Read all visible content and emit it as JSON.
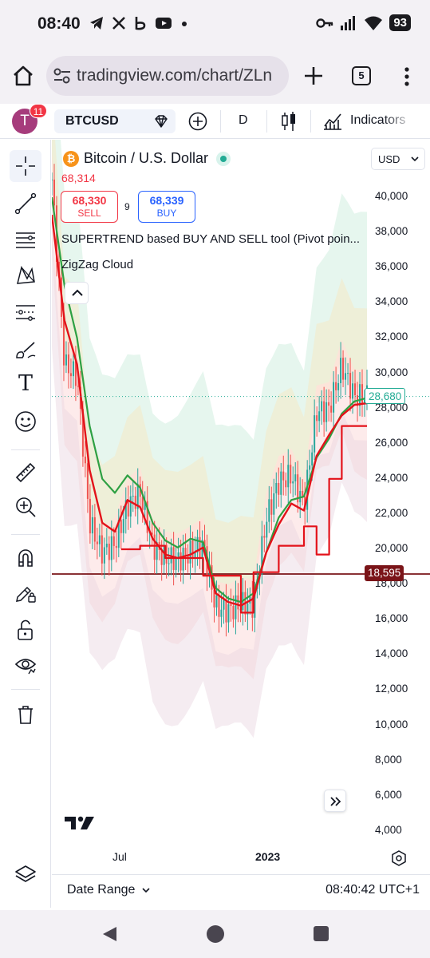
{
  "status_bar": {
    "time": "08:40",
    "notification_icons": [
      "telegram-icon",
      "x-icon",
      "bluesky-icon",
      "youtube-icon",
      "more-dot-icon"
    ],
    "battery": "93"
  },
  "browser": {
    "url": "tradingview.com/chart/ZLn",
    "tab_count": "5"
  },
  "toolbar": {
    "avatar_letter": "T",
    "notification_count": "11",
    "symbol": "BTCUSD",
    "interval": "D",
    "indicators_label": "Indicators"
  },
  "legend": {
    "title": "Bitcoin / U.S. Dollar",
    "last_price": "68,314",
    "sell_price": "68,330",
    "sell_label": "SELL",
    "spread": "9",
    "buy_price": "68,339",
    "buy_label": "BUY",
    "indicator_1": "SUPERTREND based BUY AND SELL tool (Pivot poin...",
    "indicator_2": "ZigZag Cloud"
  },
  "currency_select": "USD",
  "chart_data": {
    "type": "candlestick",
    "symbol": "BTCUSD",
    "interval": "D",
    "x_labels": [
      "Jul",
      "2023"
    ],
    "y_ticks": [
      "40,000",
      "38,000",
      "36,000",
      "34,000",
      "32,000",
      "30,000",
      "28,000",
      "26,000",
      "24,000",
      "22,000",
      "20,000",
      "18,000",
      "16,000",
      "14,000",
      "12,000",
      "10,000",
      "8,000",
      "6,000",
      "4,000"
    ],
    "ylim": [
      3500,
      42000
    ],
    "horizontal_line": {
      "value": "18,595",
      "color": "#7a1418"
    },
    "current_price": {
      "value": "28,680",
      "color": "#22ab94"
    },
    "series": [
      {
        "name": "price",
        "x": [
          0,
          4,
          8,
          12,
          16,
          20,
          24,
          28,
          32,
          36,
          40,
          44,
          48,
          52,
          56,
          60,
          64,
          68,
          72,
          76,
          80,
          84,
          88,
          92,
          96,
          100
        ],
        "values": [
          41000,
          30500,
          29800,
          21500,
          19800,
          20300,
          22500,
          23200,
          20200,
          19500,
          19400,
          19800,
          20300,
          16700,
          16500,
          16900,
          16800,
          21700,
          23800,
          24200,
          22500,
          27800,
          28000,
          30400,
          28700,
          28680
        ]
      },
      {
        "name": "green-line",
        "x": [
          0,
          4,
          8,
          12,
          16,
          20,
          24,
          28,
          32,
          36,
          40,
          44,
          48,
          52,
          56,
          60,
          64,
          68,
          72,
          76,
          80,
          84,
          88,
          92,
          96,
          100
        ],
        "values": [
          40000,
          35000,
          32000,
          27000,
          24000,
          23200,
          24200,
          23500,
          21500,
          20500,
          20100,
          20600,
          20400,
          17800,
          17200,
          17000,
          17500,
          19800,
          21800,
          22800,
          23000,
          25200,
          26300,
          27700,
          28400,
          28600
        ]
      },
      {
        "name": "red-line",
        "x": [
          0,
          4,
          8,
          12,
          16,
          20,
          24,
          28,
          32,
          36,
          40,
          44,
          48,
          52,
          56,
          60,
          64,
          68,
          72,
          76,
          80,
          84,
          88,
          92,
          96,
          100
        ],
        "values": [
          39000,
          33000,
          30500,
          24500,
          21500,
          21000,
          22800,
          22400,
          20600,
          19700,
          19500,
          19700,
          20100,
          17500,
          17000,
          16800,
          17200,
          19800,
          21400,
          22600,
          22200,
          25300,
          26500,
          27600,
          28200,
          28300
        ]
      },
      {
        "name": "red-step",
        "x": [
          22,
          28,
          28,
          36,
          36,
          48,
          48,
          60,
          60,
          64,
          64,
          72,
          72,
          80,
          80,
          84,
          84,
          88,
          88,
          92,
          92,
          100
        ],
        "values": [
          20000,
          20000,
          20200,
          20200,
          19500,
          19500,
          18500,
          18500,
          16400,
          16400,
          18700,
          18700,
          20200,
          20200,
          21300,
          21300,
          19700,
          19700,
          24000,
          24000,
          27000,
          27000
        ]
      }
    ]
  },
  "time_axis": {
    "jul": "Jul",
    "year": "2023"
  },
  "date_range_label": "Date Range",
  "clock": "08:40:42 UTC+1"
}
